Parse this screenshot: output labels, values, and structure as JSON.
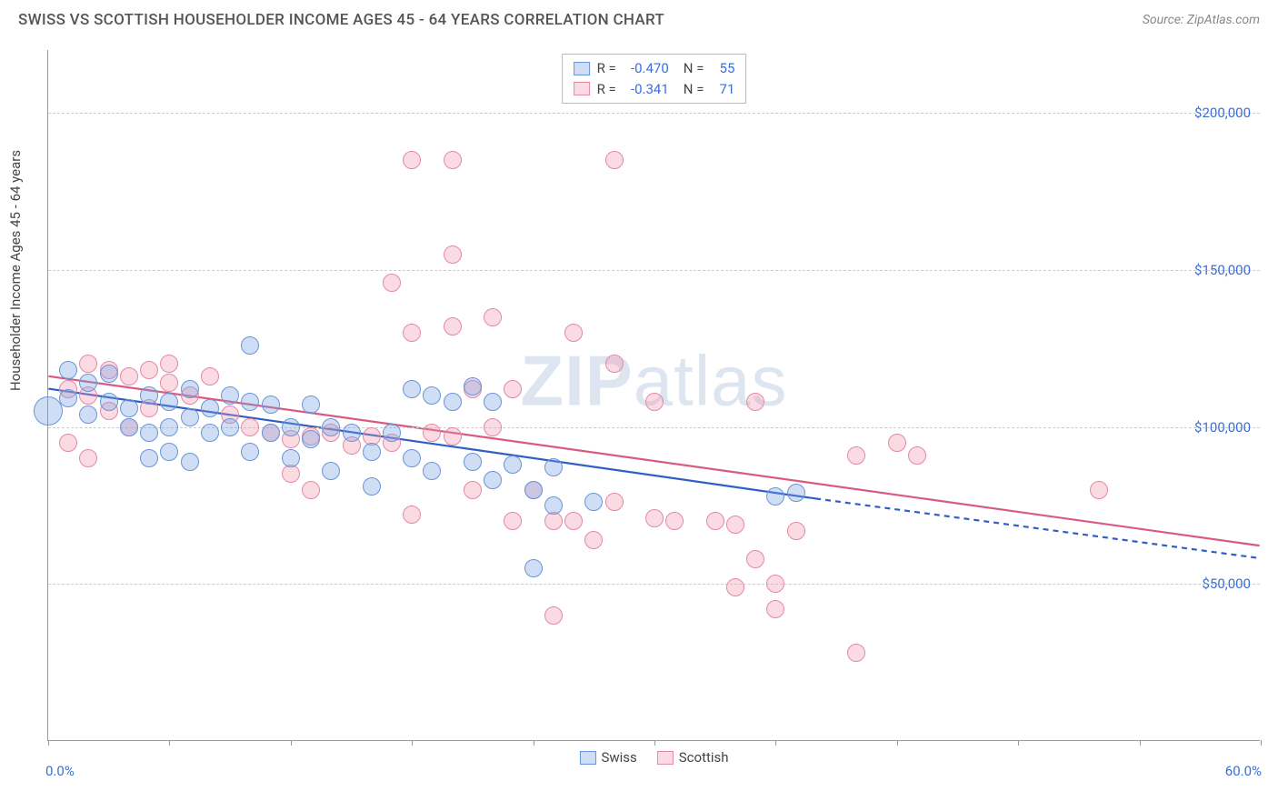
{
  "title": "SWISS VS SCOTTISH HOUSEHOLDER INCOME AGES 45 - 64 YEARS CORRELATION CHART",
  "source": "Source: ZipAtlas.com",
  "watermark_bold": "ZIP",
  "watermark_thin": "atlas",
  "ylabel": "Householder Income Ages 45 - 64 years",
  "chart": {
    "type": "scatter-correlation",
    "xlim": [
      0,
      60
    ],
    "ylim": [
      0,
      220000
    ],
    "x_ticks": [
      0,
      6,
      12,
      18,
      24,
      30,
      36,
      42,
      48,
      54,
      60
    ],
    "x_tick_labels": {
      "0": "0.0%",
      "60": "60.0%"
    },
    "y_gridlines": [
      50000,
      100000,
      150000,
      200000
    ],
    "y_tick_labels": {
      "50000": "$50,000",
      "100000": "$100,000",
      "150000": "$150,000",
      "200000": "$200,000"
    },
    "background_color": "#ffffff",
    "grid_color": "#cccccc",
    "axis_color": "#999999",
    "tick_label_color": "#3b6fd8",
    "marker_radius": 10,
    "marker_radius_large": 16,
    "series": [
      {
        "name": "Swiss",
        "fill": "rgba(120,160,225,0.35)",
        "stroke": "#6a95d8",
        "line_color": "#2f5fc4",
        "line_width": 2.2,
        "R": "-0.470",
        "N": "55",
        "regression": {
          "x1": 0,
          "y1": 112000,
          "x2": 38,
          "y2": 77000,
          "extend_x2": 60,
          "extend_y2": 58000
        },
        "points": [
          [
            0,
            105000,
            16
          ],
          [
            1,
            118000
          ],
          [
            1,
            109000
          ],
          [
            2,
            114000
          ],
          [
            2,
            104000
          ],
          [
            3,
            117000
          ],
          [
            3,
            108000
          ],
          [
            4,
            106000
          ],
          [
            4,
            100000
          ],
          [
            5,
            110000
          ],
          [
            5,
            98000
          ],
          [
            5,
            90000
          ],
          [
            6,
            108000
          ],
          [
            6,
            100000
          ],
          [
            6,
            92000
          ],
          [
            7,
            112000
          ],
          [
            7,
            103000
          ],
          [
            7,
            89000
          ],
          [
            8,
            106000
          ],
          [
            8,
            98000
          ],
          [
            9,
            110000
          ],
          [
            9,
            100000
          ],
          [
            10,
            126000
          ],
          [
            10,
            108000
          ],
          [
            10,
            92000
          ],
          [
            11,
            107000
          ],
          [
            11,
            98000
          ],
          [
            12,
            100000
          ],
          [
            12,
            90000
          ],
          [
            13,
            107000
          ],
          [
            13,
            96000
          ],
          [
            14,
            100000
          ],
          [
            14,
            86000
          ],
          [
            15,
            98000
          ],
          [
            16,
            92000
          ],
          [
            16,
            81000
          ],
          [
            17,
            98000
          ],
          [
            18,
            112000
          ],
          [
            18,
            90000
          ],
          [
            19,
            110000
          ],
          [
            19,
            86000
          ],
          [
            20,
            108000
          ],
          [
            21,
            113000
          ],
          [
            21,
            89000
          ],
          [
            22,
            108000
          ],
          [
            22,
            83000
          ],
          [
            23,
            88000
          ],
          [
            24,
            55000
          ],
          [
            24,
            80000
          ],
          [
            25,
            87000
          ],
          [
            25,
            75000
          ],
          [
            27,
            76000
          ],
          [
            36,
            78000
          ],
          [
            37,
            79000
          ]
        ]
      },
      {
        "name": "Scottish",
        "fill": "rgba(240,150,175,0.35)",
        "stroke": "#e48aa5",
        "line_color": "#d85a80",
        "line_width": 2.2,
        "R": "-0.341",
        "N": "71",
        "regression": {
          "x1": 0,
          "y1": 116000,
          "x2": 60,
          "y2": 62000
        },
        "points": [
          [
            1,
            112000
          ],
          [
            1,
            95000
          ],
          [
            2,
            120000
          ],
          [
            2,
            110000
          ],
          [
            2,
            90000
          ],
          [
            3,
            118000
          ],
          [
            3,
            105000
          ],
          [
            4,
            116000
          ],
          [
            4,
            100000
          ],
          [
            5,
            118000
          ],
          [
            5,
            106000
          ],
          [
            6,
            114000
          ],
          [
            6,
            120000
          ],
          [
            7,
            110000
          ],
          [
            8,
            116000
          ],
          [
            9,
            104000
          ],
          [
            10,
            100000
          ],
          [
            11,
            98000
          ],
          [
            12,
            96000
          ],
          [
            12,
            85000
          ],
          [
            13,
            97000
          ],
          [
            13,
            80000
          ],
          [
            14,
            98000
          ],
          [
            15,
            94000
          ],
          [
            16,
            97000
          ],
          [
            17,
            146000
          ],
          [
            17,
            95000
          ],
          [
            18,
            185000
          ],
          [
            18,
            130000
          ],
          [
            18,
            72000
          ],
          [
            19,
            98000
          ],
          [
            20,
            185000
          ],
          [
            20,
            155000
          ],
          [
            20,
            132000
          ],
          [
            20,
            97000
          ],
          [
            21,
            112000
          ],
          [
            21,
            80000
          ],
          [
            22,
            135000
          ],
          [
            22,
            100000
          ],
          [
            23,
            112000
          ],
          [
            23,
            70000
          ],
          [
            24,
            80000
          ],
          [
            25,
            70000
          ],
          [
            25,
            40000
          ],
          [
            26,
            130000
          ],
          [
            26,
            70000
          ],
          [
            27,
            64000
          ],
          [
            28,
            185000
          ],
          [
            28,
            120000
          ],
          [
            28,
            76000
          ],
          [
            30,
            108000
          ],
          [
            30,
            71000
          ],
          [
            31,
            70000
          ],
          [
            33,
            70000
          ],
          [
            34,
            49000
          ],
          [
            34,
            69000
          ],
          [
            35,
            108000
          ],
          [
            35,
            58000
          ],
          [
            36,
            50000
          ],
          [
            36,
            42000
          ],
          [
            37,
            67000
          ],
          [
            40,
            91000
          ],
          [
            40,
            28000
          ],
          [
            42,
            95000
          ],
          [
            43,
            91000
          ],
          [
            52,
            80000
          ]
        ]
      }
    ]
  },
  "legend": {
    "items": [
      {
        "label": "Swiss"
      },
      {
        "label": "Scottish"
      }
    ]
  }
}
